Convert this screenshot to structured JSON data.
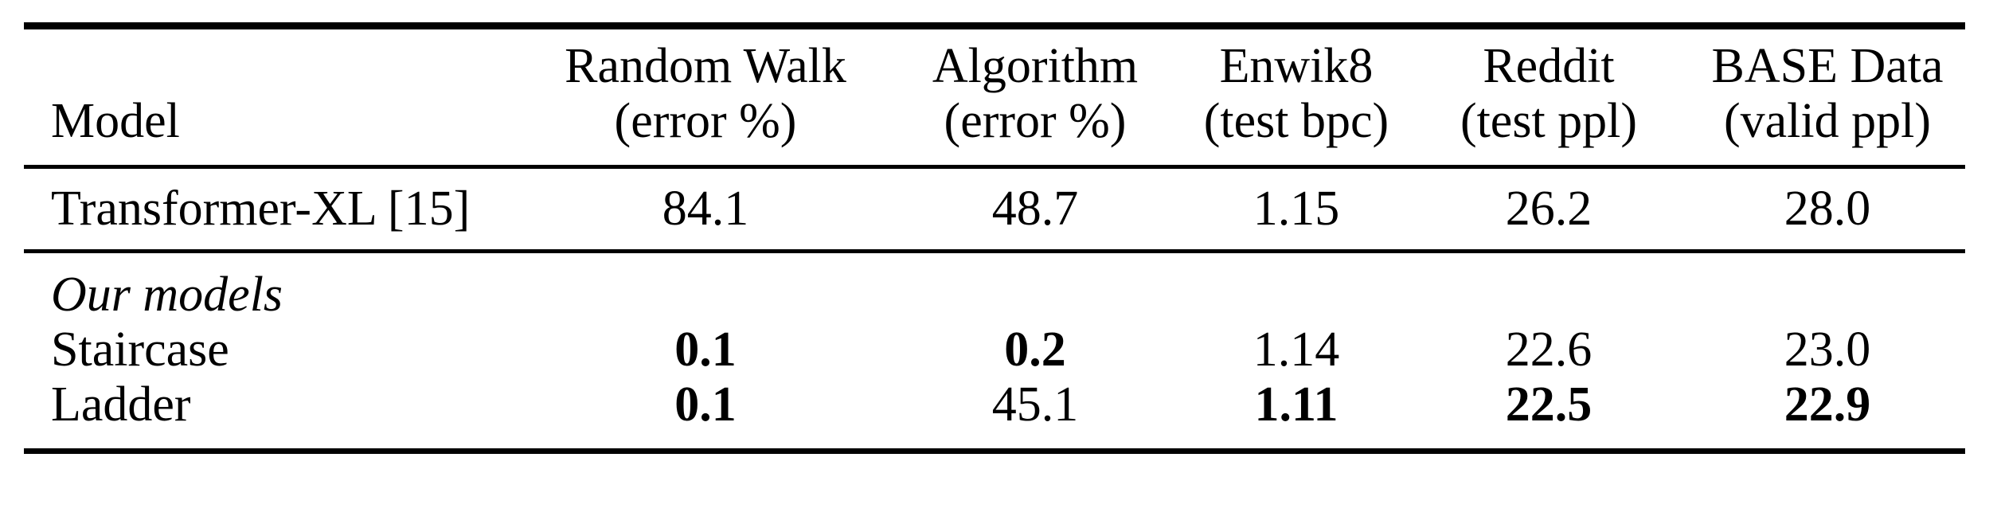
{
  "page": {
    "background": "#ffffff",
    "text_color": "#000000",
    "rule_color": "#000000"
  },
  "table": {
    "description": "benchmark-results-table",
    "columns": [
      {
        "id": "model",
        "header": "Model",
        "subheader": ""
      },
      {
        "id": "random-walk",
        "header": "Random Walk",
        "subheader": "(error %)"
      },
      {
        "id": "algorithm",
        "header": "Algorithm",
        "subheader": "(error %)"
      },
      {
        "id": "enwik8",
        "header": "Enwik8",
        "subheader": "(test bpc)"
      },
      {
        "id": "reddit",
        "header": "Reddit",
        "subheader": "(test ppl)"
      },
      {
        "id": "base-data",
        "header": "BASE Data",
        "subheader": "(valid ppl)"
      }
    ],
    "baseline_rows": [
      {
        "model": "Transformer-XL [15]",
        "values": [
          {
            "text": "84.1",
            "bold": false
          },
          {
            "text": "48.7",
            "bold": false
          },
          {
            "text": "1.15",
            "bold": false
          },
          {
            "text": "26.2",
            "bold": false
          },
          {
            "text": "28.0",
            "bold": false
          }
        ]
      }
    ],
    "section_label": "Our models",
    "section_rows": [
      {
        "model": "Staircase",
        "values": [
          {
            "text": "0.1",
            "bold": true
          },
          {
            "text": "0.2",
            "bold": true
          },
          {
            "text": "1.14",
            "bold": false
          },
          {
            "text": "22.6",
            "bold": false
          },
          {
            "text": "23.0",
            "bold": false
          }
        ]
      },
      {
        "model": "Ladder",
        "values": [
          {
            "text": "0.1",
            "bold": true
          },
          {
            "text": "45.1",
            "bold": false
          },
          {
            "text": "1.11",
            "bold": true
          },
          {
            "text": "22.5",
            "bold": true
          },
          {
            "text": "22.9",
            "bold": true
          }
        ]
      }
    ]
  }
}
